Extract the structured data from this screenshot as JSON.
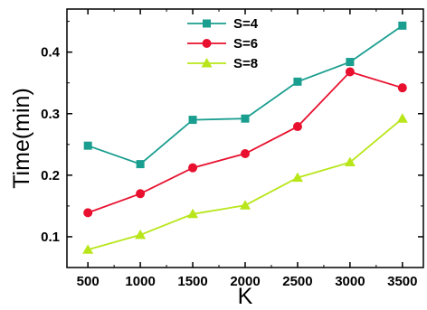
{
  "chart_data": {
    "type": "line",
    "xlabel": "K",
    "ylabel": "Time(min)",
    "x": [
      500,
      1000,
      1500,
      2000,
      2500,
      3000,
      3500
    ],
    "xlim": [
      300,
      3700
    ],
    "ylim": [
      0.05,
      0.47
    ],
    "xticks": [
      "500",
      "1000",
      "1500",
      "2000",
      "2500",
      "3000",
      "3500"
    ],
    "yticks": [
      {
        "value": 0.1,
        "label": "0.1"
      },
      {
        "value": 0.2,
        "label": "0.2"
      },
      {
        "value": 0.3,
        "label": "0.3"
      },
      {
        "value": 0.4,
        "label": "0.4"
      }
    ],
    "grid": false,
    "legend_position": "top-center",
    "series": [
      {
        "name": "S=4",
        "color": "#1a9e8f",
        "marker": "square",
        "values": [
          0.248,
          0.218,
          0.29,
          0.292,
          0.352,
          0.384,
          0.443
        ]
      },
      {
        "name": "S=6",
        "color": "#e8102e",
        "marker": "circle",
        "values": [
          0.139,
          0.17,
          0.212,
          0.235,
          0.279,
          0.368,
          0.342
        ]
      },
      {
        "name": "S=8",
        "color": "#b8e61a",
        "marker": "triangle",
        "values": [
          0.079,
          0.103,
          0.137,
          0.151,
          0.196,
          0.221,
          0.292
        ]
      }
    ]
  }
}
